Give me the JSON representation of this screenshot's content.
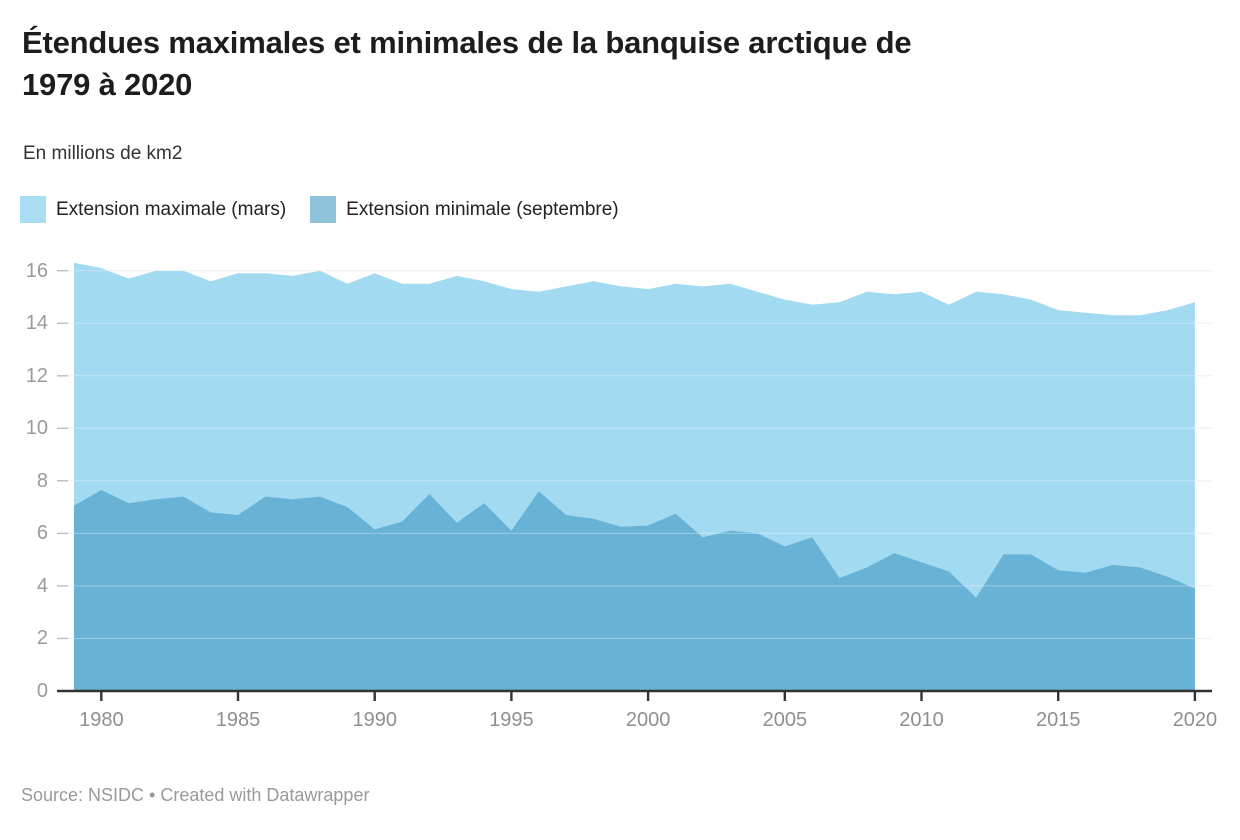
{
  "header": {
    "title_line1": "Étendues maximales et minimales de la banquise arctique de",
    "title_line2": "1979 à 2020",
    "subtitle": "En millions de km2"
  },
  "chart_data": {
    "type": "area",
    "title": "Étendues maximales et minimales de la banquise arctique de 1979 à 2020",
    "subtitle": "En millions de km2",
    "x": [
      1979,
      1980,
      1981,
      1982,
      1983,
      1984,
      1985,
      1986,
      1987,
      1988,
      1989,
      1990,
      1991,
      1992,
      1993,
      1994,
      1995,
      1996,
      1997,
      1998,
      1999,
      2000,
      2001,
      2002,
      2003,
      2004,
      2005,
      2006,
      2007,
      2008,
      2009,
      2010,
      2011,
      2012,
      2013,
      2014,
      2015,
      2016,
      2017,
      2018,
      2019,
      2020
    ],
    "series": [
      {
        "name": "Extension maximale (mars)",
        "color": "#a9ddf1",
        "fill": "#a2daf1",
        "values": [
          16.3,
          16.1,
          15.7,
          16.0,
          16.0,
          15.6,
          15.9,
          15.9,
          15.8,
          16.0,
          15.5,
          15.9,
          15.5,
          15.5,
          15.8,
          15.6,
          15.3,
          15.2,
          15.4,
          15.6,
          15.4,
          15.3,
          15.5,
          15.4,
          15.5,
          15.2,
          14.9,
          14.7,
          14.8,
          15.2,
          15.1,
          15.2,
          14.7,
          15.2,
          15.1,
          14.9,
          14.5,
          14.4,
          14.3,
          14.3,
          14.5,
          14.8
        ]
      },
      {
        "name": "Extension minimale (septembre)",
        "color": "#8fc3da",
        "fill": "#68b2d5",
        "values": [
          7.05,
          7.65,
          7.15,
          7.3,
          7.4,
          6.8,
          6.7,
          7.4,
          7.3,
          7.4,
          7.0,
          6.15,
          6.45,
          7.5,
          6.4,
          7.15,
          6.1,
          7.6,
          6.7,
          6.55,
          6.25,
          6.3,
          6.75,
          5.85,
          6.1,
          6.0,
          5.5,
          5.85,
          4.3,
          4.7,
          5.25,
          4.9,
          4.55,
          3.55,
          5.2,
          5.2,
          4.6,
          4.5,
          4.8,
          4.7,
          4.35,
          3.9
        ]
      }
    ],
    "xlabel": "",
    "ylabel": "En millions de km2",
    "ylim": [
      0,
      16.6
    ],
    "y_ticks": [
      0,
      2,
      4,
      6,
      8,
      10,
      12,
      14,
      16
    ],
    "x_ticks": [
      1980,
      1985,
      1990,
      1995,
      2000,
      2005,
      2010,
      2015,
      2020
    ],
    "grid": true,
    "legend_position": "top-left",
    "overlap": true
  },
  "footer": {
    "text": "Source: NSIDC • Created with Datawrapper"
  },
  "colors": {
    "title": "#1d1d1d",
    "subtitle": "#333333",
    "y_axis_label": "#9a9a9a",
    "x_axis_label": "#8f8f8f",
    "gridline": "#e9e9e9",
    "grid_overlay_on_area": "rgba(255,255,255,0.35)",
    "tick_stub": "#bdbdbd",
    "baseline": "#333333",
    "footer_text": "#9a9a9a",
    "background": "#ffffff"
  }
}
